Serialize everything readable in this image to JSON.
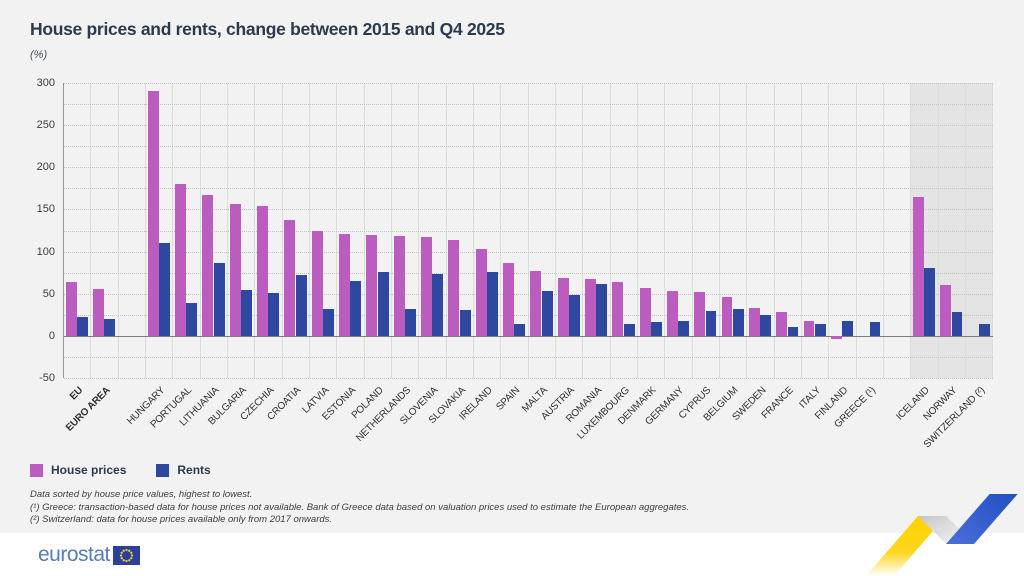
{
  "header": {
    "title": "House prices and rents, change between 2015 and Q4 2025",
    "unit": "(%)"
  },
  "legend": {
    "items": [
      {
        "label": "House prices",
        "color": "#bb5dbf"
      },
      {
        "label": "Rents",
        "color": "#2e479f"
      }
    ]
  },
  "footnotes": {
    "lines": [
      "Data sorted by house price values, highest to lowest.",
      "(¹) Greece: transaction-based data for house prices not available. Bank of Greece data based on valuation prices used to estimate the European aggregates.",
      "(²) Switzerland: data for house prices available only from 2017 onwards.",
      "Data sorted by house price values, highest to lowest.\n(¹) Greece: transaction-based data for house prices not available. Bank of Greece data based on valuation prices used to estimate the European aggregates.\n(²) Switzerland: data for house prices available only from 2017 onwards."
    ]
  },
  "footer": {
    "logo_text": "eurostat"
  },
  "chart_data": {
    "type": "bar",
    "title": "House prices and rents, change between 2015 and Q4 2025",
    "subtitle": "(%)",
    "xlabel": "",
    "ylabel": "(%)",
    "ylim": [
      -50,
      300
    ],
    "yticks": [
      300,
      250,
      200,
      150,
      100,
      50,
      0,
      -50
    ],
    "gridline_step": 25,
    "grid": true,
    "legend_position": "bottom-left",
    "categories": [
      "EU",
      "EURO AREA",
      "HUNGARY",
      "PORTUGAL",
      "LITHUANIA",
      "BULGARIA",
      "CZECHIA",
      "CROATIA",
      "LATVIA",
      "ESTONIA",
      "POLAND",
      "NETHERLANDS",
      "SLOVENIA",
      "SLOVAKIA",
      "IRELAND",
      "SPAIN",
      "MALTA",
      "AUSTRIA",
      "ROMANIA",
      "LUXEMBOURG",
      "DENMARK",
      "GERMANY",
      "CYPRUS",
      "BELGIUM",
      "SWEDEN",
      "FRANCE",
      "ITALY",
      "FINLAND",
      "GREECE (¹)",
      "ICELAND",
      "NORWAY",
      "SWITZERLAND (²)"
    ],
    "series": [
      {
        "name": "House prices",
        "color": "#bb5dbf",
        "values": [
          64,
          56,
          290,
          180,
          167,
          156,
          154,
          138,
          124,
          121,
          120,
          119,
          117,
          114,
          103,
          86,
          77,
          69,
          68,
          64,
          57,
          53,
          52,
          46,
          33,
          28,
          18,
          -4,
          null,
          165,
          60,
          null
        ]
      },
      {
        "name": "Rents",
        "color": "#2e479f",
        "values": [
          22,
          20,
          110,
          39,
          87,
          54,
          51,
          72,
          32,
          65,
          76,
          32,
          73,
          31,
          76,
          14,
          53,
          49,
          61,
          14,
          17,
          18,
          29,
          32,
          25,
          10,
          14,
          18,
          16,
          81,
          28,
          14
        ]
      }
    ],
    "separators_after": [
      "EURO AREA",
      "GREECE (¹)"
    ],
    "shaded_categories": [
      "ICELAND",
      "NORWAY",
      "SWITZERLAND (²)"
    ],
    "bold_categories": [
      "EU",
      "EURO AREA"
    ]
  },
  "colors": {
    "house_prices": "#bb5dbf",
    "rents": "#2e479f",
    "background": "#f2f2f2",
    "shaded_band": "#e4e4e4",
    "zero_line": "#7c7c7c",
    "ribbon_yellow": "#ffd200",
    "ribbon_blue": "#2a58c8",
    "logo_blue": "#5b79bd",
    "flag_blue": "#29409c",
    "flag_stars": "#ffd617"
  }
}
